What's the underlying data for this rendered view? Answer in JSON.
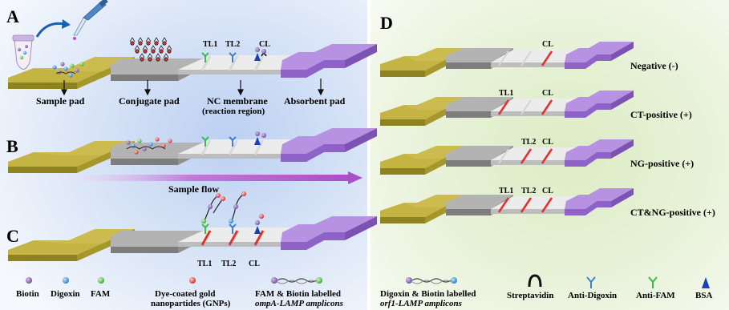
{
  "panels": {
    "A": "A",
    "B": "B",
    "C": "C",
    "D": "D"
  },
  "strip_labels": {
    "sample_pad": "Sample pad",
    "conjugate_pad": "Conjugate pad",
    "nc_membrane_line1": "NC membrane",
    "nc_membrane_line2": "(reaction region)",
    "absorbent_pad": "Absorbent pad"
  },
  "lines": {
    "tl1": "TL1",
    "tl2": "TL2",
    "cl": "CL"
  },
  "flow_label": "Sample flow",
  "results": {
    "negative": "Negative (-)",
    "ct_positive": "CT-positive (+)",
    "ng_positive": "NG-positive (+)",
    "ctng_positive": "CT&NG-positive (+)"
  },
  "legend_left": {
    "biotin": "Biotin",
    "digoxin": "Digoxin",
    "fam": "FAM",
    "gnp_line1": "Dye-coated gold",
    "gnp_line2": "nanopartides (GNPs)",
    "famb_line1": "FAM & Biotin labelled",
    "famb_line2": "ompA-LAMP amplicons"
  },
  "legend_right": {
    "digb_line1": "Digoxin & Biotin labelled",
    "digb_line2": "orf1-LAMP amplicons",
    "streptavidin": "Streptavidin",
    "anti_digoxin": "Anti-Digoxin",
    "anti_fam": "Anti-FAM",
    "bsa": "BSA"
  },
  "colors": {
    "sample_pad": "#b8a838",
    "conjugate_pad": "#a0a0a0",
    "membrane": "#e6e6e6",
    "absorbent_pad": "#a97ed8",
    "test_line_positive": "#e0332e",
    "biotin": "#7b5aa6",
    "digoxin": "#2f8fd8",
    "fam": "#4cc23c",
    "gnp": "#e23a3a",
    "anti_fam": "#3fb94f",
    "anti_digoxin": "#3d7fd0",
    "bsa": "#1a3fc0"
  }
}
